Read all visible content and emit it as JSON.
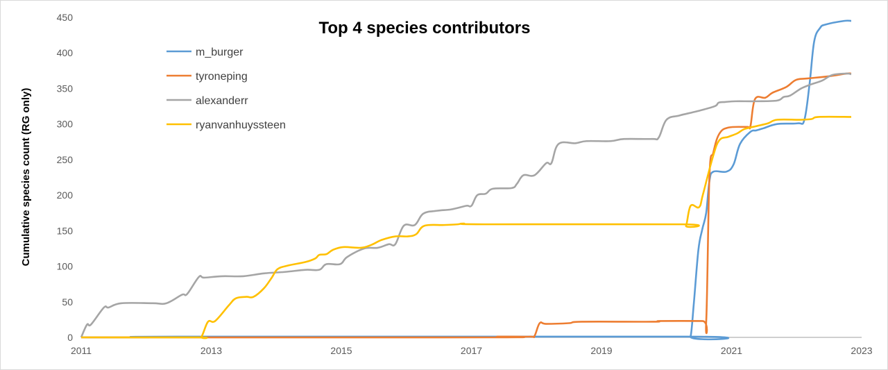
{
  "chart_data": {
    "type": "line",
    "title": "Top 4 species contributors",
    "xlabel": "",
    "ylabel": "Cumulative species count (RG only)",
    "xlim": [
      2011,
      2023
    ],
    "ylim": [
      0,
      450
    ],
    "x_ticks": [
      "2011",
      "2013",
      "2015",
      "2017",
      "2019",
      "2021",
      "2023"
    ],
    "y_ticks": [
      "0",
      "50",
      "100",
      "150",
      "200",
      "250",
      "300",
      "350",
      "400",
      "450"
    ],
    "grid": false,
    "legend_position": "top-left",
    "series": [
      {
        "name": "m_burger",
        "color": "#5b9bd5",
        "points": [
          [
            2011.0,
            0
          ],
          [
            2012.0,
            0
          ],
          [
            2012.5,
            1
          ],
          [
            2020.31,
            1
          ],
          [
            2020.37,
            1
          ],
          [
            2020.42,
            48
          ],
          [
            2020.49,
            123
          ],
          [
            2020.55,
            152
          ],
          [
            2020.61,
            175
          ],
          [
            2020.66,
            220
          ],
          [
            2020.72,
            233
          ],
          [
            2020.92,
            233
          ],
          [
            2021.03,
            243
          ],
          [
            2021.13,
            272
          ],
          [
            2021.29,
            289
          ],
          [
            2021.38,
            291
          ],
          [
            2021.49,
            294
          ],
          [
            2021.7,
            300
          ],
          [
            2022.02,
            301
          ],
          [
            2022.12,
            306
          ],
          [
            2022.2,
            357
          ],
          [
            2022.27,
            416
          ],
          [
            2022.36,
            435
          ],
          [
            2022.45,
            440
          ],
          [
            2022.73,
            445
          ],
          [
            2022.84,
            445
          ]
        ]
      },
      {
        "name": "tyroneping",
        "color": "#ed7d31",
        "points": [
          [
            2011.0,
            0
          ],
          [
            2017.3,
            0
          ],
          [
            2017.4,
            1
          ],
          [
            2017.9,
            1
          ],
          [
            2017.97,
            2
          ],
          [
            2018.05,
            20
          ],
          [
            2018.15,
            19
          ],
          [
            2018.5,
            20
          ],
          [
            2018.7,
            22
          ],
          [
            2019.8,
            22
          ],
          [
            2019.9,
            23
          ],
          [
            2020.55,
            23
          ],
          [
            2020.61,
            22
          ],
          [
            2020.66,
            227
          ],
          [
            2020.72,
            260
          ],
          [
            2020.81,
            286
          ],
          [
            2020.95,
            295
          ],
          [
            2021.24,
            296
          ],
          [
            2021.29,
            297
          ],
          [
            2021.36,
            335
          ],
          [
            2021.52,
            337
          ],
          [
            2021.63,
            344
          ],
          [
            2021.84,
            352
          ],
          [
            2021.99,
            362
          ],
          [
            2022.16,
            364
          ],
          [
            2022.48,
            367
          ],
          [
            2022.77,
            371
          ],
          [
            2022.84,
            371
          ]
        ]
      },
      {
        "name": "alexanderr",
        "color": "#a5a5a5",
        "points": [
          [
            2011.0,
            0
          ],
          [
            2011.09,
            18
          ],
          [
            2011.15,
            18
          ],
          [
            2011.35,
            42
          ],
          [
            2011.42,
            42
          ],
          [
            2011.62,
            48
          ],
          [
            2012.1,
            48
          ],
          [
            2012.31,
            48
          ],
          [
            2012.55,
            60
          ],
          [
            2012.63,
            61
          ],
          [
            2012.81,
            85
          ],
          [
            2012.89,
            84
          ],
          [
            2013.17,
            86
          ],
          [
            2013.49,
            86
          ],
          [
            2013.81,
            90
          ],
          [
            2014.13,
            92
          ],
          [
            2014.45,
            95
          ],
          [
            2014.66,
            95
          ],
          [
            2014.77,
            103
          ],
          [
            2014.98,
            103
          ],
          [
            2015.09,
            113
          ],
          [
            2015.35,
            125
          ],
          [
            2015.56,
            126
          ],
          [
            2015.73,
            131
          ],
          [
            2015.83,
            131
          ],
          [
            2015.96,
            157
          ],
          [
            2016.13,
            158
          ],
          [
            2016.26,
            174
          ],
          [
            2016.47,
            178
          ],
          [
            2016.69,
            180
          ],
          [
            2016.92,
            185
          ],
          [
            2017.0,
            185
          ],
          [
            2017.09,
            200
          ],
          [
            2017.22,
            202
          ],
          [
            2017.33,
            209
          ],
          [
            2017.62,
            210
          ],
          [
            2017.7,
            216
          ],
          [
            2017.8,
            228
          ],
          [
            2017.97,
            228
          ],
          [
            2018.15,
            245
          ],
          [
            2018.23,
            245
          ],
          [
            2018.34,
            272
          ],
          [
            2018.6,
            273
          ],
          [
            2018.77,
            276
          ],
          [
            2019.14,
            276
          ],
          [
            2019.35,
            279
          ],
          [
            2019.78,
            279
          ],
          [
            2019.88,
            281
          ],
          [
            2020.0,
            306
          ],
          [
            2020.2,
            312
          ],
          [
            2020.47,
            318
          ],
          [
            2020.74,
            325
          ],
          [
            2020.8,
            330
          ],
          [
            2020.9,
            331
          ],
          [
            2021.06,
            332
          ],
          [
            2021.38,
            332
          ],
          [
            2021.7,
            333
          ],
          [
            2021.8,
            338
          ],
          [
            2021.9,
            340
          ],
          [
            2022.07,
            350
          ],
          [
            2022.23,
            356
          ],
          [
            2022.39,
            361
          ],
          [
            2022.55,
            369
          ],
          [
            2022.77,
            371
          ],
          [
            2022.84,
            370
          ]
        ]
      },
      {
        "name": "ryanvanhuyssteen",
        "color": "#ffc000",
        "points": [
          [
            2011.0,
            0
          ],
          [
            2012.77,
            0
          ],
          [
            2012.85,
            1
          ],
          [
            2012.95,
            22
          ],
          [
            2013.06,
            23
          ],
          [
            2013.27,
            45
          ],
          [
            2013.38,
            55
          ],
          [
            2013.54,
            57
          ],
          [
            2013.65,
            57
          ],
          [
            2013.81,
            69
          ],
          [
            2013.93,
            84
          ],
          [
            2014.02,
            96
          ],
          [
            2014.18,
            101
          ],
          [
            2014.45,
            106
          ],
          [
            2014.6,
            111
          ],
          [
            2014.66,
            116
          ],
          [
            2014.77,
            117
          ],
          [
            2014.87,
            123
          ],
          [
            2015.03,
            127
          ],
          [
            2015.3,
            126
          ],
          [
            2015.46,
            130
          ],
          [
            2015.62,
            137
          ],
          [
            2015.83,
            142
          ],
          [
            2016.02,
            142
          ],
          [
            2016.15,
            145
          ],
          [
            2016.28,
            157
          ],
          [
            2016.58,
            158
          ],
          [
            2016.79,
            159
          ],
          [
            2016.88,
            160
          ],
          [
            2017.2,
            159
          ],
          [
            2020.24,
            159
          ],
          [
            2020.3,
            157
          ],
          [
            2020.37,
            185
          ],
          [
            2020.5,
            183
          ],
          [
            2020.56,
            201
          ],
          [
            2020.71,
            253
          ],
          [
            2020.81,
            277
          ],
          [
            2020.95,
            282
          ],
          [
            2021.09,
            287
          ],
          [
            2021.2,
            293
          ],
          [
            2021.38,
            297
          ],
          [
            2021.56,
            301
          ],
          [
            2021.7,
            306
          ],
          [
            2022.05,
            306
          ],
          [
            2022.23,
            307
          ],
          [
            2022.34,
            310
          ],
          [
            2022.84,
            310
          ]
        ]
      }
    ]
  }
}
